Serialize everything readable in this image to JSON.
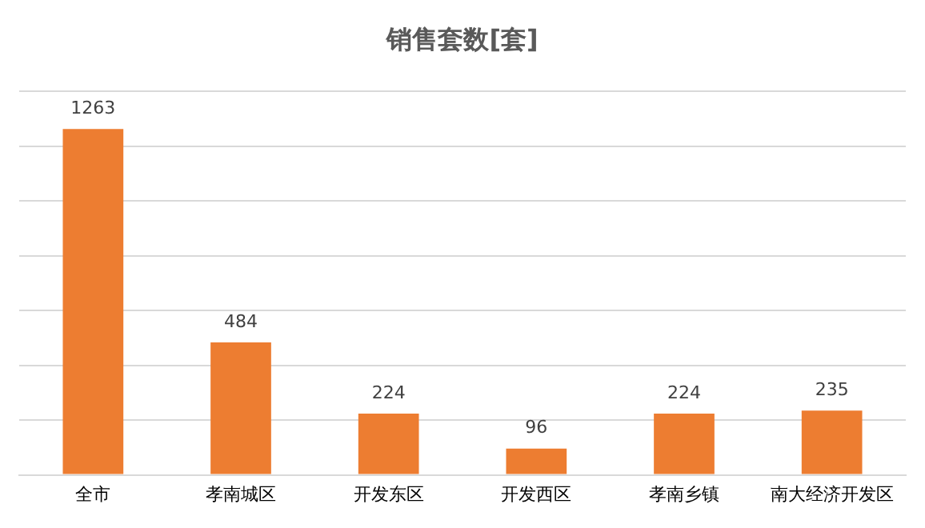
{
  "chart_data": {
    "type": "bar",
    "title": "销售套数[套]",
    "categories": [
      "全市",
      "孝南城区",
      "开发东区",
      "开发西区",
      "孝南乡镇",
      "南大经济开发区"
    ],
    "values": [
      1263,
      484,
      224,
      96,
      224,
      235
    ],
    "color": "#ed7d31",
    "ylim": [
      0,
      1400
    ],
    "yticks": [
      {
        "value": 0,
        "label": null
      },
      {
        "value": 200,
        "label": null
      },
      {
        "value": 400,
        "label": null
      },
      {
        "value": 600,
        "label": null
      },
      {
        "value": 800,
        "label": null
      },
      {
        "value": 1000,
        "label": null
      },
      {
        "value": 1200,
        "label": null
      },
      {
        "value": 1400,
        "label": null
      }
    ],
    "tick_labels": "x",
    "grid": "y",
    "data_labels": true,
    "legend": false
  }
}
